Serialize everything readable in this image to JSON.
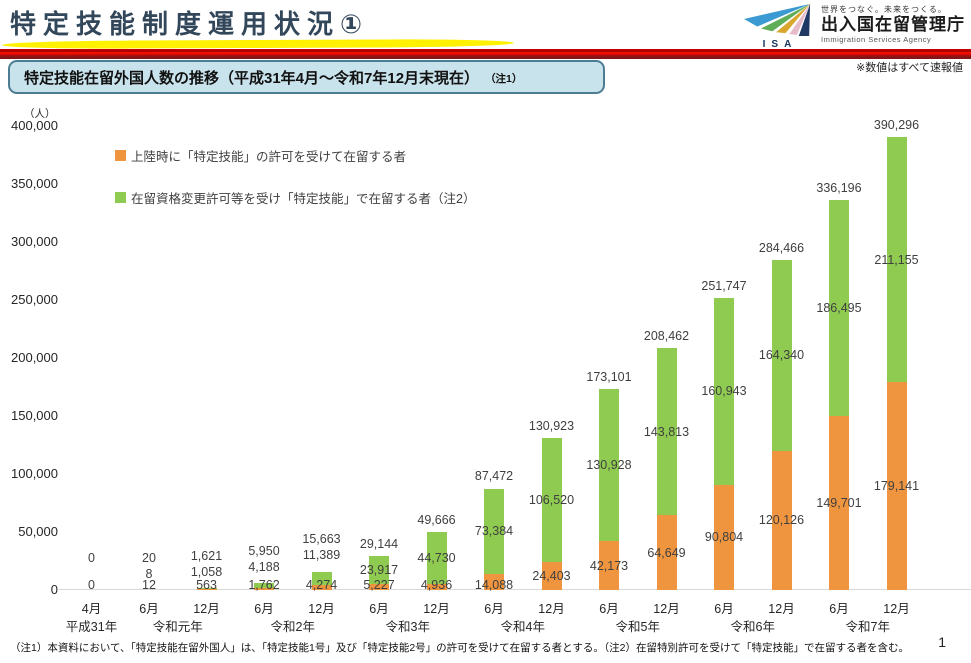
{
  "header": {
    "title": "特定技能制度運用状況①",
    "logo": {
      "isa_label": "ISA",
      "tagline": "世界をつなぐ。未来をつくる。",
      "agency_name": "出入国在留管理庁",
      "agency_name_en": "Immigration Services Agency"
    }
  },
  "subtitle": {
    "text": "特定技能在留外国人数の推移（平成31年4月～令和7年12月末現在）",
    "note_ref": "（注1）"
  },
  "provisional_note": "※数値はすべて速報値",
  "chart_data": {
    "type": "bar",
    "stacked": true,
    "unit_label": "（人）",
    "ylim": [
      0,
      400000
    ],
    "ytick_step": 50000,
    "grid": false,
    "legend_position": "top-left-inside",
    "months": [
      "4月",
      "6月",
      "12月",
      "6月",
      "12月",
      "6月",
      "12月",
      "6月",
      "12月",
      "6月",
      "12月",
      "6月",
      "12月",
      "6月",
      "12月"
    ],
    "era_groups": [
      {
        "label": "平成31年",
        "span": 1
      },
      {
        "label": "令和元年",
        "span": 2
      },
      {
        "label": "令和2年",
        "span": 2
      },
      {
        "label": "令和3年",
        "span": 2
      },
      {
        "label": "令和4年",
        "span": 2
      },
      {
        "label": "令和5年",
        "span": 2
      },
      {
        "label": "令和6年",
        "span": 2
      },
      {
        "label": "令和7年",
        "span": 2
      }
    ],
    "series": [
      {
        "name": "上陸時に「特定技能」の許可を受けて在留する者",
        "color": "#F0953F",
        "values": [
          0,
          12,
          563,
          1762,
          4274,
          5227,
          4936,
          14088,
          24403,
          42173,
          64649,
          90804,
          120126,
          149701,
          179141
        ]
      },
      {
        "name": "在留資格変更許可等を受け「特定技能」で在留する者（注2）",
        "color": "#8FCB50",
        "values": [
          0,
          8,
          1058,
          4188,
          11389,
          23917,
          44730,
          73384,
          106520,
          130928,
          143813,
          160943,
          164340,
          186495,
          211155
        ]
      }
    ],
    "totals": [
      0,
      20,
      1621,
      5950,
      15663,
      29144,
      49666,
      87472,
      130923,
      173101,
      208462,
      251747,
      284466,
      336196,
      390296
    ]
  },
  "footnote": "（注1）本資料において、「特定技能在留外国人」は、「特定技能1号」及び「特定技能2号」の許可を受けて在留する者とする。（注2）在留特別許可を受けて「特定技能」で在留する者を含む。",
  "page_number": "1"
}
